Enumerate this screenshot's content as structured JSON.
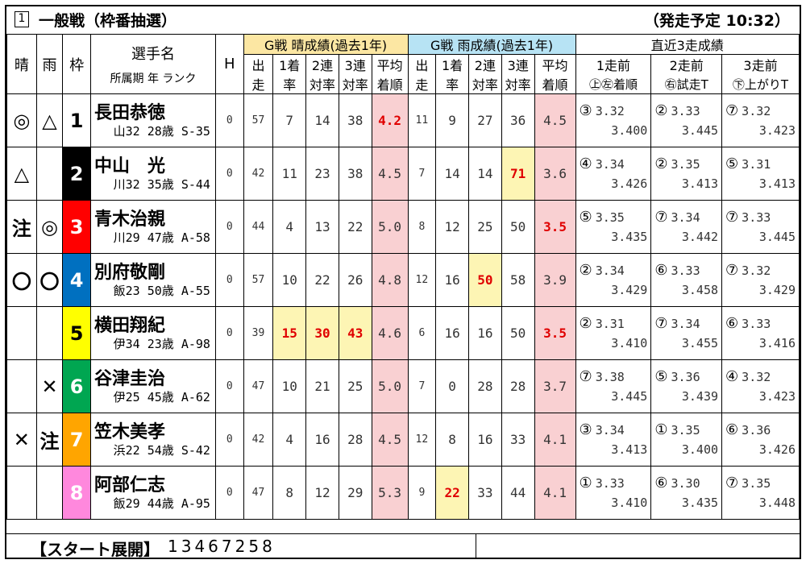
{
  "header": {
    "race_number": "1",
    "race_name": "一般戦（枠番抽選）",
    "start_time": "（発走予定 10:32）"
  },
  "columns": {
    "sun": "晴",
    "rain": "雨",
    "waku": "枠",
    "name_top": "選手名",
    "name_sub": "所属期 年 ランク",
    "h": "H",
    "sun_group": "G戦 晴成績(過去1年)",
    "rain_group": "G戦 雨成績(過去1年)",
    "recent_group": "直近3走成績",
    "st1": "出",
    "st2": "走",
    "w1a": "1着",
    "w1b": "率",
    "w2a": "2連",
    "w2b": "対率",
    "w3a": "3連",
    "w3b": "対率",
    "avga": "平均",
    "avgb": "着順",
    "r1a": "1走前",
    "r1b": "㊤㊧着順",
    "r2a": "2走前",
    "r2b": "㊨試走T",
    "r3a": "3走前",
    "r3b": "㊦上がりT"
  },
  "waku_colors": [
    "#ffffff",
    "#000000",
    "#ff0000",
    "#0070c0",
    "#ffff00",
    "#00a651",
    "#ffa500",
    "#ff88dd"
  ],
  "waku_text_colors": [
    "#000000",
    "#ffffff",
    "#ffffff",
    "#ffffff",
    "#000000",
    "#ffffff",
    "#ffffff",
    "#ffffff"
  ],
  "riders": [
    {
      "sun_mark": "◎",
      "rain_mark": "△",
      "waku": "1",
      "name": "長田恭徳",
      "meta": "山32 28歳 S-35",
      "h": "0",
      "sun": [
        "57",
        "7",
        "14",
        "38",
        "4.2"
      ],
      "rain": [
        "11",
        "9",
        "27",
        "36",
        "4.5"
      ],
      "recent": [
        [
          "③",
          "3.32",
          "3.400"
        ],
        [
          "②",
          "3.33",
          "3.445"
        ],
        [
          "⑦",
          "3.32",
          "3.423"
        ]
      ]
    },
    {
      "sun_mark": "△",
      "rain_mark": "",
      "waku": "2",
      "name": "中山　光",
      "meta": "川32 35歳 S-44",
      "h": "0",
      "sun": [
        "42",
        "11",
        "23",
        "38",
        "4.5"
      ],
      "rain": [
        "7",
        "14",
        "14",
        "71",
        "3.6"
      ],
      "recent": [
        [
          "④",
          "3.34",
          "3.426"
        ],
        [
          "②",
          "3.35",
          "3.413"
        ],
        [
          "⑤",
          "3.31",
          "3.413"
        ]
      ]
    },
    {
      "sun_mark": "注",
      "rain_mark": "◎",
      "waku": "3",
      "name": "青木治親",
      "meta": "川29 47歳 A-58",
      "h": "0",
      "sun": [
        "44",
        "4",
        "13",
        "22",
        "5.0"
      ],
      "rain": [
        "8",
        "12",
        "25",
        "50",
        "3.5"
      ],
      "recent": [
        [
          "⑤",
          "3.35",
          "3.435"
        ],
        [
          "⑦",
          "3.34",
          "3.442"
        ],
        [
          "⑦",
          "3.33",
          "3.445"
        ]
      ]
    },
    {
      "sun_mark": "〇",
      "rain_mark": "〇",
      "waku": "4",
      "name": "別府敬剛",
      "meta": "飯23 50歳 A-55",
      "h": "0",
      "sun": [
        "57",
        "10",
        "22",
        "26",
        "4.8"
      ],
      "rain": [
        "12",
        "16",
        "50",
        "58",
        "3.9"
      ],
      "recent": [
        [
          "②",
          "3.34",
          "3.429"
        ],
        [
          "⑥",
          "3.33",
          "3.458"
        ],
        [
          "⑦",
          "3.32",
          "3.429"
        ]
      ]
    },
    {
      "sun_mark": "",
      "rain_mark": "",
      "waku": "5",
      "name": "横田翔紀",
      "meta": "伊34 23歳 A-98",
      "h": "0",
      "sun": [
        "39",
        "15",
        "30",
        "43",
        "4.6"
      ],
      "rain": [
        "6",
        "16",
        "16",
        "50",
        "3.5"
      ],
      "recent": [
        [
          "②",
          "3.31",
          "3.410"
        ],
        [
          "⑦",
          "3.34",
          "3.455"
        ],
        [
          "⑥",
          "3.33",
          "3.416"
        ]
      ]
    },
    {
      "sun_mark": "",
      "rain_mark": "✕",
      "waku": "6",
      "name": "谷津圭治",
      "meta": "伊25 45歳 A-62",
      "h": "0",
      "sun": [
        "47",
        "10",
        "21",
        "25",
        "5.0"
      ],
      "rain": [
        "7",
        "0",
        "28",
        "28",
        "3.7"
      ],
      "recent": [
        [
          "⑦",
          "3.38",
          "3.445"
        ],
        [
          "⑤",
          "3.36",
          "3.439"
        ],
        [
          "④",
          "3.32",
          "3.423"
        ]
      ]
    },
    {
      "sun_mark": "✕",
      "rain_mark": "注",
      "waku": "7",
      "name": "笠木美孝",
      "meta": "浜22 54歳 S-42",
      "h": "0",
      "sun": [
        "42",
        "4",
        "16",
        "28",
        "4.5"
      ],
      "rain": [
        "12",
        "8",
        "16",
        "33",
        "4.1"
      ],
      "recent": [
        [
          "③",
          "3.34",
          "3.413"
        ],
        [
          "①",
          "3.35",
          "3.400"
        ],
        [
          "⑥",
          "3.36",
          "3.426"
        ]
      ]
    },
    {
      "sun_mark": "",
      "rain_mark": "",
      "waku": "8",
      "name": "阿部仁志",
      "meta": "飯29 44歳 A-95",
      "h": "0",
      "sun": [
        "47",
        "8",
        "12",
        "29",
        "5.3"
      ],
      "rain": [
        "9",
        "22",
        "33",
        "44",
        "4.1"
      ],
      "recent": [
        [
          "①",
          "3.33",
          "3.410"
        ],
        [
          "⑥",
          "3.30",
          "3.435"
        ],
        [
          "⑦",
          "3.35",
          "3.448"
        ]
      ]
    }
  ],
  "highlights": {
    "sun_yellow": [
      [
        4,
        1
      ],
      [
        4,
        2
      ],
      [
        4,
        3
      ]
    ],
    "sun_red": [
      [
        0,
        4
      ],
      [
        4,
        1
      ],
      [
        4,
        2
      ],
      [
        4,
        3
      ]
    ],
    "rain_yellow": [
      [
        1,
        3
      ],
      [
        3,
        2
      ],
      [
        7,
        1
      ]
    ],
    "rain_red": [
      [
        1,
        3
      ],
      [
        2,
        4
      ],
      [
        3,
        2
      ],
      [
        4,
        4
      ],
      [
        7,
        1
      ]
    ]
  },
  "footer": {
    "label": "【スタート展開】",
    "sequence": "13467258"
  }
}
